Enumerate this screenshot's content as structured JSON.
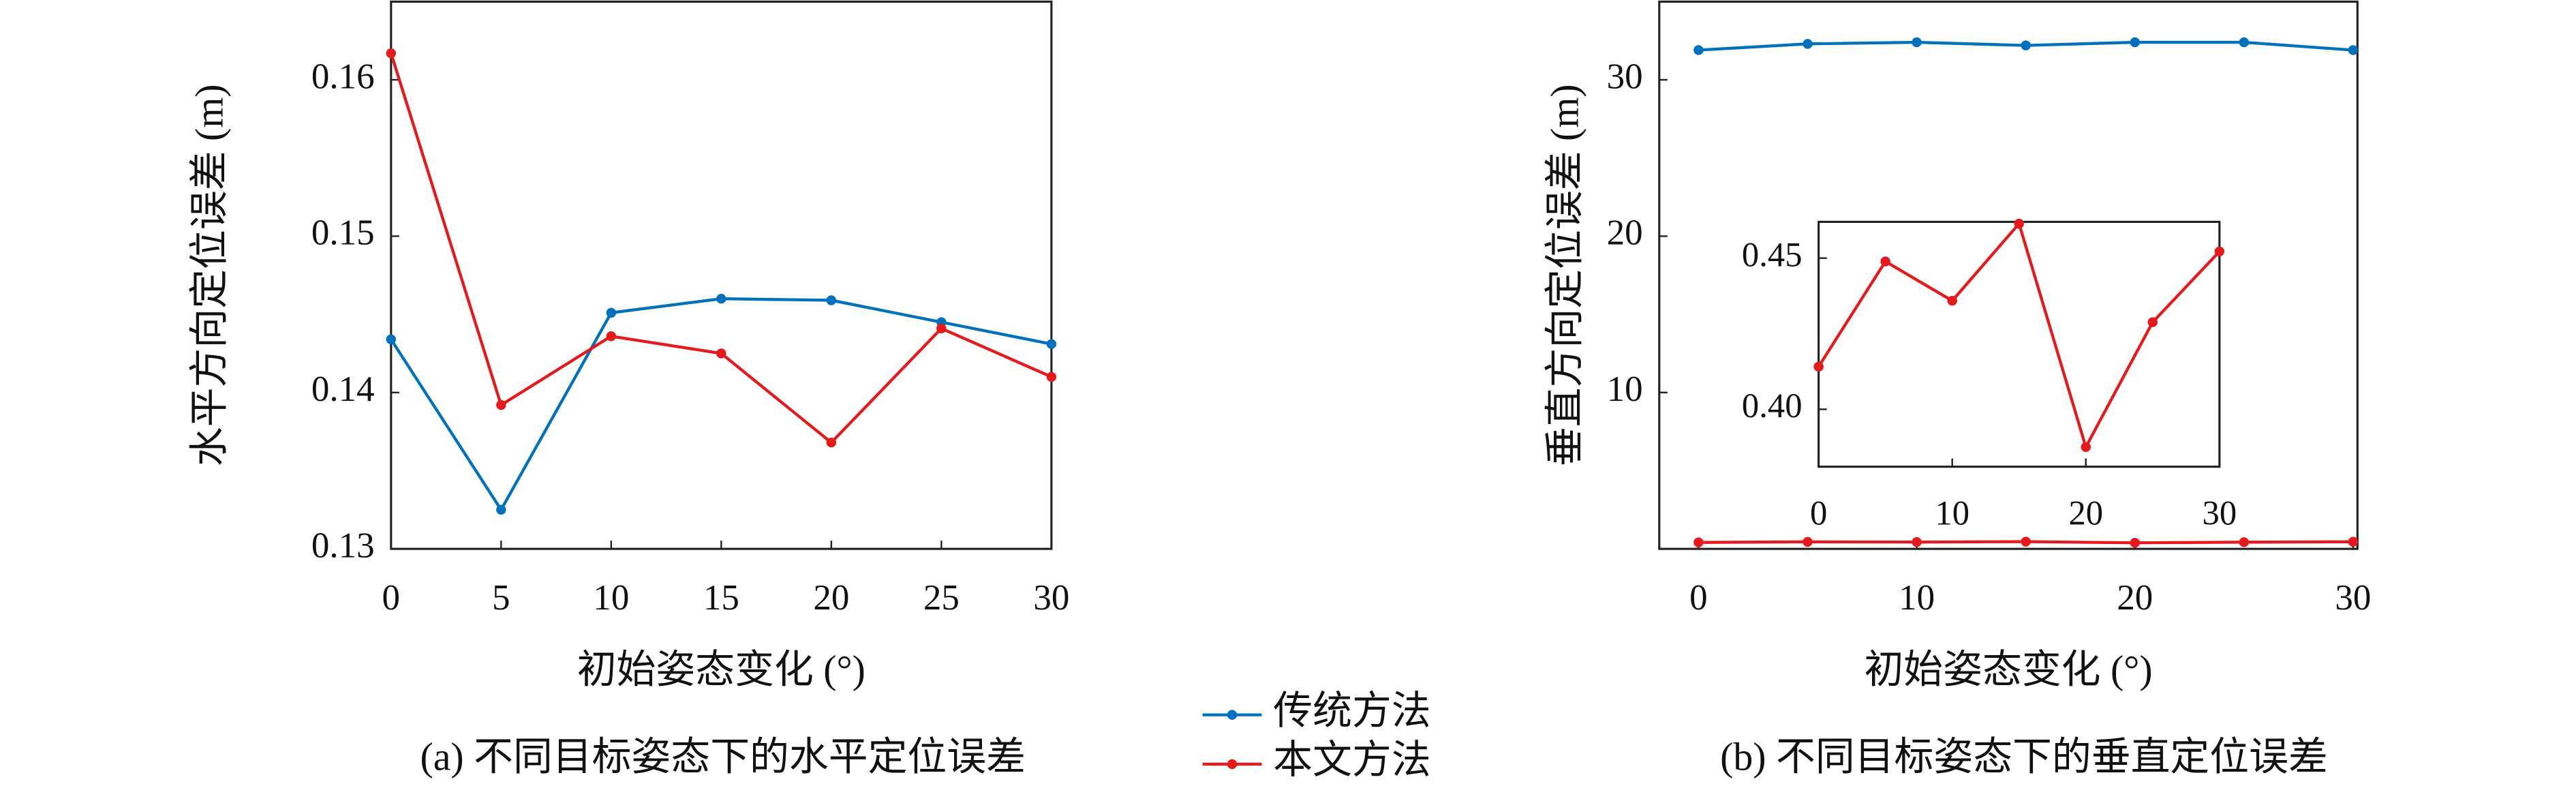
{
  "chart_data": [
    {
      "type": "line",
      "caption": "(a) 不同目标姿态下的水平定位误差",
      "x_label": "初始姿态变化 (°)",
      "y_label": "水平方向定位误差 (m)",
      "x": [
        0,
        5,
        10,
        15,
        20,
        25,
        30
      ],
      "xlim": [
        0,
        30
      ],
      "xticks": [
        0,
        5,
        10,
        15,
        20,
        25,
        30
      ],
      "ylim": [
        0.13,
        0.165
      ],
      "yticks": [
        {
          "value": 0.13,
          "label": "0.13"
        },
        {
          "value": 0.14,
          "label": "0.14"
        },
        {
          "value": 0.15,
          "label": "0.15"
        },
        {
          "value": 0.16,
          "label": "0.16"
        }
      ],
      "legend": "outside-bottom",
      "series": [
        {
          "name": "传统方法",
          "color": "#0072bd",
          "values": [
            0.1434,
            0.1325,
            0.1451,
            0.146,
            0.1459,
            0.1445,
            0.1431
          ]
        },
        {
          "name": "本文方法",
          "color": "#e41a1c",
          "values": [
            0.1617,
            0.1392,
            0.1436,
            0.1425,
            0.1368,
            0.1441,
            0.141
          ]
        }
      ]
    },
    {
      "type": "line",
      "caption": "(b) 不同目标姿态下的垂直定位误差",
      "x_label": "初始姿态变化 (°)",
      "y_label": "垂直方向定位误差 (m)",
      "x": [
        0,
        5,
        10,
        15,
        20,
        25,
        30
      ],
      "xlim": [
        -1.8,
        30.2
      ],
      "xticks": [
        0,
        10,
        20,
        30
      ],
      "ylim": [
        0,
        35
      ],
      "yticks": [
        10,
        20,
        30
      ],
      "series": [
        {
          "color": "#0072bd",
          "values": [
            31.9,
            32.3,
            32.4,
            32.2,
            32.4,
            32.4,
            31.9
          ]
        },
        {
          "color": "#e41a1c",
          "values": [
            0.4141,
            0.4489,
            0.4359,
            0.4614,
            0.3875,
            0.4288,
            0.4522
          ]
        }
      ]
    },
    {
      "type": "line",
      "x": [
        0,
        5,
        10,
        15,
        20,
        25,
        30
      ],
      "xlim": [
        0,
        30
      ],
      "xticks": [
        0,
        10,
        20,
        30
      ],
      "ylim": [
        0.381,
        0.462
      ],
      "yticks": [
        {
          "value": 0.4,
          "label": "0.40"
        },
        {
          "value": 0.45,
          "label": "0.45"
        }
      ],
      "series": [
        {
          "color": "#e41a1c",
          "values": [
            0.4141,
            0.4489,
            0.4359,
            0.4614,
            0.3875,
            0.4288,
            0.4522
          ]
        }
      ]
    }
  ]
}
